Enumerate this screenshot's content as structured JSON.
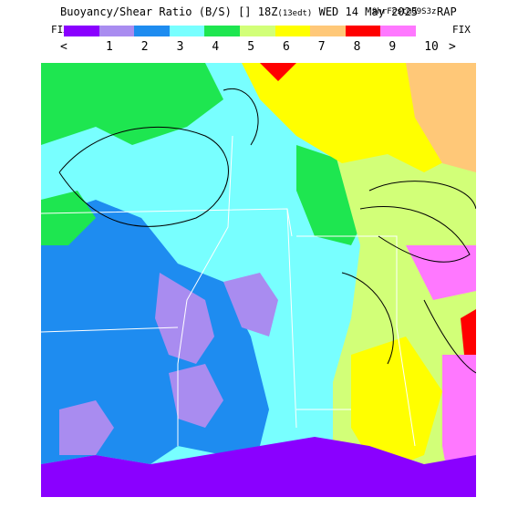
{
  "header": {
    "title": "Buoyancy/Shear Ratio (B/S) [] 18Z",
    "title_sub": "(13edt)",
    "date": "WED 14 May 2025",
    "run": "9hrFcst@09S3z",
    "model": "RAP"
  },
  "legend": {
    "fix_left": "FIX",
    "fix_right": "FIX",
    "less_symbol": "<",
    "greater_symbol": ">",
    "tick_labels": [
      "1",
      "2",
      "3",
      "4",
      "5",
      "6",
      "7",
      "8",
      "9",
      "10"
    ],
    "colors": [
      "#8a00ff",
      "#a98cf0",
      "#1e8cf0",
      "#78ffff",
      "#1ee650",
      "#d2ff78",
      "#ffff00",
      "#ffc878",
      "#ff0000",
      "#ff78ff"
    ]
  },
  "map": {
    "land_color": "#ffffff",
    "gulf_color": "#8a00ff"
  }
}
